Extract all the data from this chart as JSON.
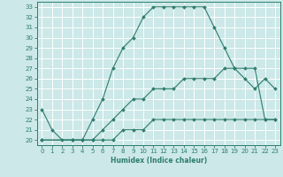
{
  "xlabel": "Humidex (Indice chaleur)",
  "bg_color": "#cce8e8",
  "grid_color": "#ffffff",
  "line_color": "#2e7d6e",
  "xlim": [
    -0.5,
    23.5
  ],
  "ylim": [
    19.5,
    33.5
  ],
  "xticks": [
    0,
    1,
    2,
    3,
    4,
    5,
    6,
    7,
    8,
    9,
    10,
    11,
    12,
    13,
    14,
    15,
    16,
    17,
    18,
    19,
    20,
    21,
    22,
    23
  ],
  "yticks": [
    20,
    21,
    22,
    23,
    24,
    25,
    26,
    27,
    28,
    29,
    30,
    31,
    32,
    33
  ],
  "line1_x": [
    0,
    1,
    2,
    3,
    4,
    5,
    6,
    7,
    8,
    9,
    10,
    11,
    12,
    13,
    14,
    15,
    16,
    17,
    18,
    19,
    20,
    21,
    22,
    23
  ],
  "line1_y": [
    23,
    21,
    20,
    20,
    20,
    22,
    24,
    27,
    29,
    30,
    32,
    33,
    33,
    33,
    33,
    33,
    33,
    31,
    29,
    27,
    26,
    25,
    26,
    25
  ],
  "line2_x": [
    0,
    3,
    4,
    5,
    6,
    7,
    8,
    9,
    10,
    11,
    12,
    13,
    14,
    15,
    16,
    17,
    18,
    19,
    20,
    21,
    22,
    23
  ],
  "line2_y": [
    20,
    20,
    20,
    20,
    21,
    22,
    23,
    24,
    24,
    25,
    25,
    25,
    26,
    26,
    26,
    26,
    27,
    27,
    27,
    27,
    22,
    22
  ],
  "line3_x": [
    0,
    3,
    4,
    5,
    6,
    7,
    8,
    9,
    10,
    11,
    12,
    13,
    14,
    15,
    16,
    17,
    18,
    19,
    20,
    21,
    22,
    23
  ],
  "line3_y": [
    20,
    20,
    20,
    20,
    20,
    20,
    21,
    21,
    21,
    22,
    22,
    22,
    22,
    22,
    22,
    22,
    22,
    22,
    22,
    22,
    22,
    22
  ]
}
